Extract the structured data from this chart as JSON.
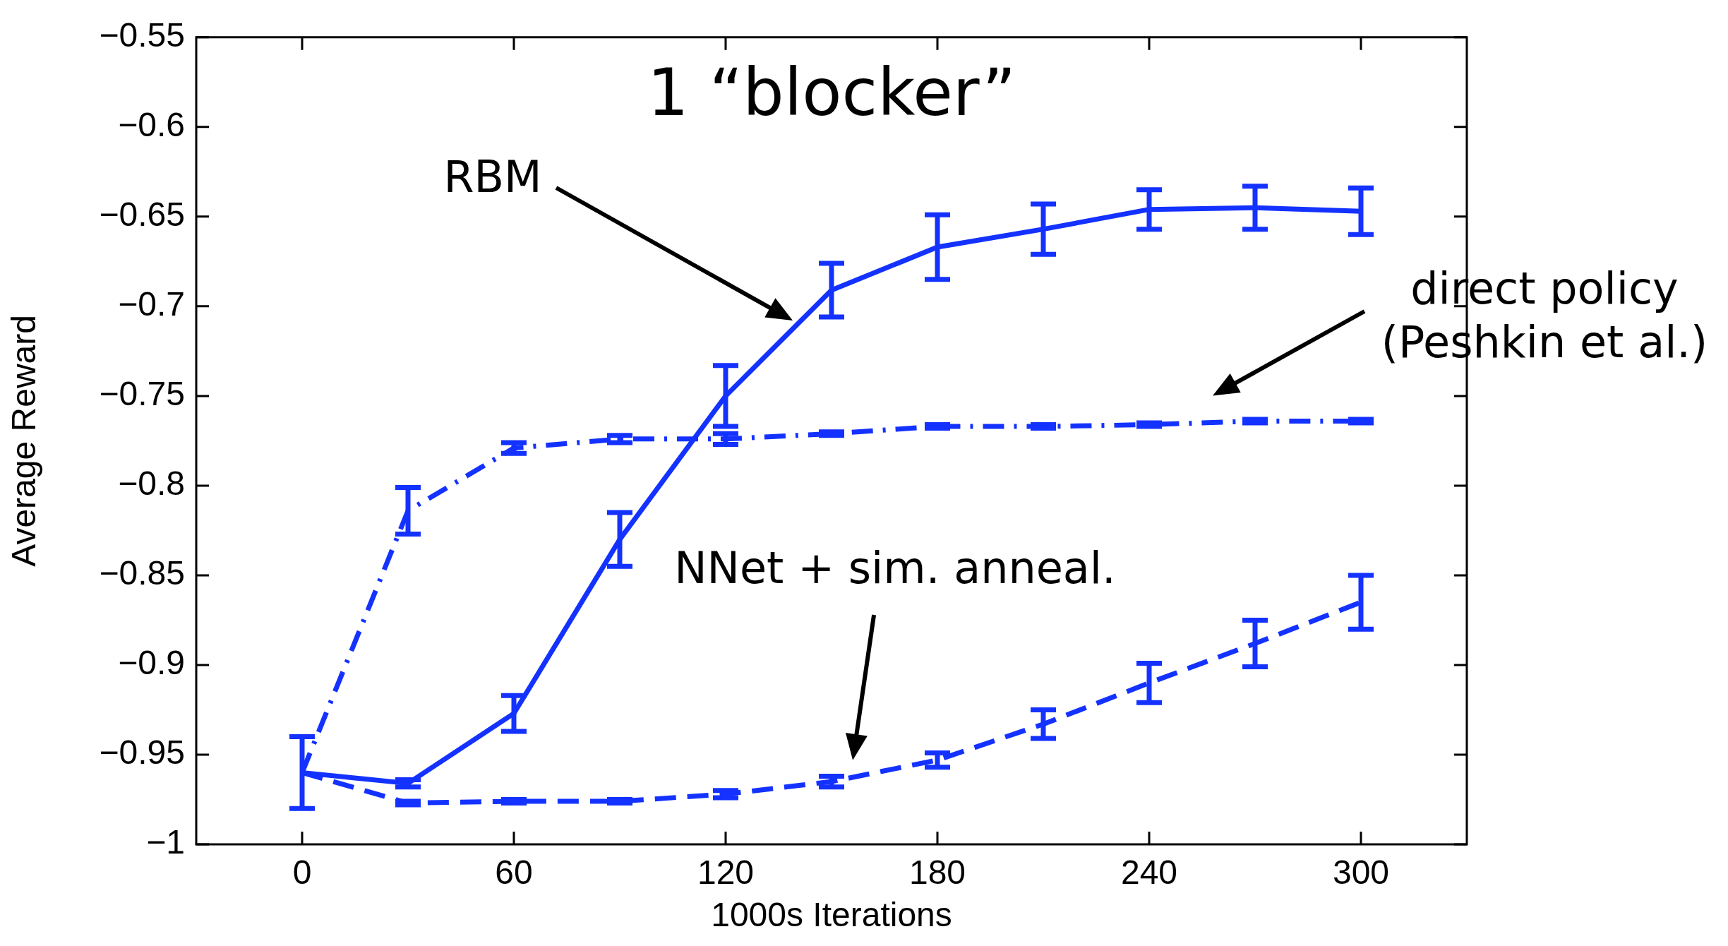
{
  "chart_data": {
    "type": "line",
    "title": "1 “blocker”",
    "xlabel": "1000s Iterations",
    "ylabel": "Average Reward",
    "xlim": [
      -30,
      330
    ],
    "xticks": [
      0,
      60,
      120,
      180,
      240,
      300
    ],
    "ylim": [
      -1,
      -0.55
    ],
    "yticks": [
      {
        "value": -1,
        "label": "−1"
      },
      {
        "value": -0.95,
        "label": "−0.95"
      },
      {
        "value": -0.9,
        "label": "−0.9"
      },
      {
        "value": -0.85,
        "label": "−0.85"
      },
      {
        "value": -0.8,
        "label": "−0.8"
      },
      {
        "value": -0.75,
        "label": "−0.75"
      },
      {
        "value": -0.7,
        "label": "−0.7"
      },
      {
        "value": -0.65,
        "label": "−0.65"
      },
      {
        "value": -0.6,
        "label": "−0.6"
      },
      {
        "value": -0.55,
        "label": "−0.55"
      }
    ],
    "grid": false,
    "legend": false,
    "marker": "none",
    "x": [
      0,
      30,
      60,
      90,
      120,
      150,
      180,
      210,
      240,
      270,
      300
    ],
    "series": [
      {
        "color": "#1432ff",
        "line_style": "solid",
        "values": [
          -0.96,
          -0.966,
          -0.927,
          -0.83,
          -0.75,
          -0.691,
          -0.667,
          -0.657,
          -0.646,
          -0.645,
          -0.647
        ],
        "errors": [
          0.02,
          0.002,
          0.01,
          0.015,
          0.017,
          0.015,
          0.018,
          0.014,
          0.011,
          0.012,
          0.013
        ]
      },
      {
        "color": "#1432ff",
        "line_style": "dashdot",
        "values": [
          -0.96,
          -0.814,
          -0.779,
          -0.774,
          -0.774,
          -0.771,
          -0.767,
          -0.767,
          -0.766,
          -0.764,
          -0.764
        ],
        "errors": [
          null,
          0.013,
          0.003,
          0.002,
          0.003,
          0.001,
          0.001,
          0.001,
          0.001,
          0.001,
          0.001
        ]
      },
      {
        "color": "#1432ff",
        "line_style": "dashed",
        "values": [
          -0.96,
          -0.977,
          -0.976,
          -0.976,
          -0.972,
          -0.965,
          -0.953,
          -0.933,
          -0.91,
          -0.888,
          -0.865
        ],
        "errors": [
          null,
          0.001,
          0.001,
          0.001,
          0.002,
          0.003,
          0.004,
          0.008,
          0.011,
          0.013,
          0.015
        ]
      }
    ],
    "annotations": [
      "RBM",
      "direct policy\n(Peshkin et al.)",
      "NNet + sim. anneal."
    ]
  }
}
